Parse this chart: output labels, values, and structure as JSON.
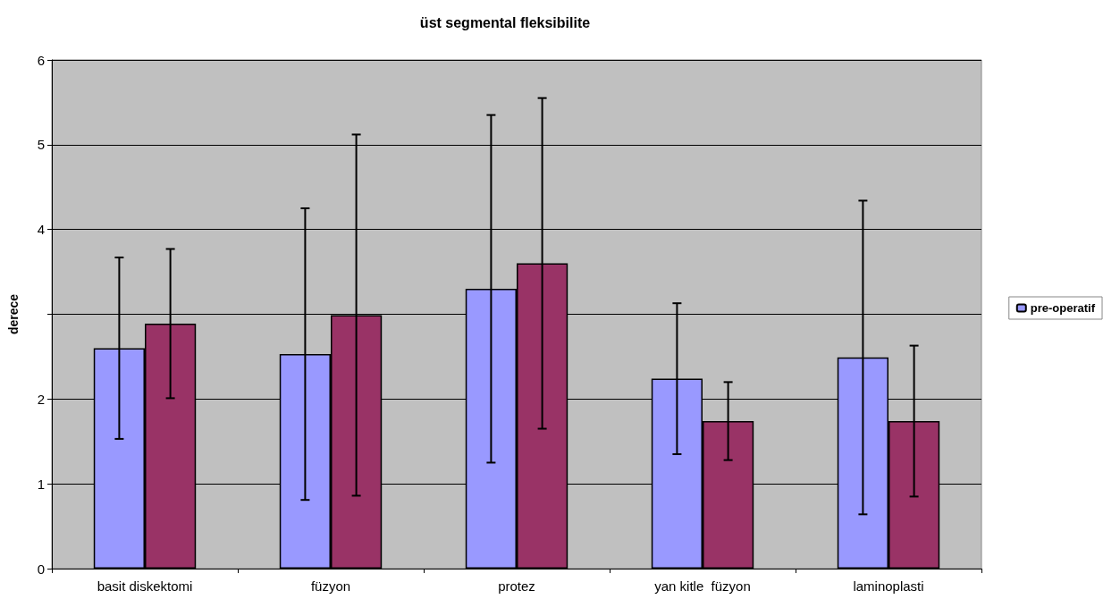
{
  "chart_data": {
    "type": "bar",
    "title": "üst segmental fleksibilite",
    "ylabel": "derece",
    "categories": [
      "basit diskektomi",
      "füzyon",
      "protez",
      "yan kitle  füzyon",
      "laminoplasti"
    ],
    "series": [
      {
        "name": "pre-operatif",
        "color": "#9999ff",
        "values": [
          2.6,
          2.53,
          3.3,
          2.24,
          2.49
        ],
        "errors": [
          1.07,
          1.72,
          2.05,
          0.89,
          1.85
        ]
      },
      {
        "color": "#993366",
        "values": [
          2.89,
          2.99,
          3.6,
          1.74,
          1.74
        ],
        "errors": [
          0.88,
          2.13,
          1.95,
          0.46,
          0.89
        ]
      }
    ],
    "ylim": [
      0,
      6
    ],
    "yticks": [
      0,
      1,
      2,
      {
        "value": 3,
        "label": null
      },
      4,
      5,
      6
    ],
    "grid": "y",
    "legend": "right"
  }
}
